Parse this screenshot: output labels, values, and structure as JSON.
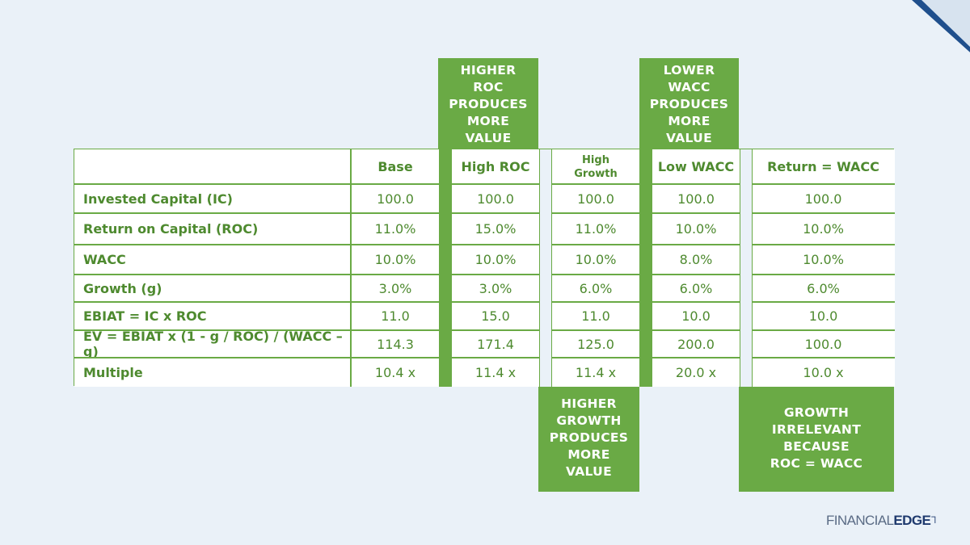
{
  "colors": {
    "background": "#eaf1f8",
    "accent_green": "#6aaa45",
    "text_green": "#4e8a2f",
    "navy": "#1f3a6e"
  },
  "callouts": {
    "higher_roc": [
      "HIGHER",
      "ROC",
      "PRODUCES",
      "MORE",
      "VALUE"
    ],
    "lower_wacc": [
      "LOWER",
      "WACC",
      "PRODUCES",
      "MORE",
      "VALUE"
    ],
    "higher_growth": [
      "HIGHER",
      "GROWTH",
      "PRODUCES",
      "MORE",
      "VALUE"
    ],
    "growth_irrelevant": [
      "GROWTH",
      "IRRELEVANT",
      "BECAUSE",
      "ROC = WACC"
    ]
  },
  "table": {
    "columns": [
      "Base",
      "High ROC",
      "High Growth",
      "Low WACC",
      "Return = WACC"
    ],
    "rows": [
      {
        "label": "Invested Capital (IC)",
        "values": [
          "100.0",
          "100.0",
          "100.0",
          "100.0",
          "100.0"
        ]
      },
      {
        "label": "Return on Capital (ROC)",
        "values": [
          "11.0%",
          "15.0%",
          "11.0%",
          "10.0%",
          "10.0%"
        ]
      },
      {
        "label": "WACC",
        "values": [
          "10.0%",
          "10.0%",
          "10.0%",
          "8.0%",
          "10.0%"
        ]
      },
      {
        "label": "Growth (g)",
        "values": [
          "3.0%",
          "3.0%",
          "6.0%",
          "6.0%",
          "6.0%"
        ]
      },
      {
        "label": "EBIAT = IC x ROC",
        "values": [
          "11.0",
          "15.0",
          "11.0",
          "10.0",
          "10.0"
        ]
      },
      {
        "label": "EV = EBIAT x (1 - g / ROC) / (WACC – g)",
        "values": [
          "114.3",
          "171.4",
          "125.0",
          "200.0",
          "100.0"
        ]
      },
      {
        "label": "Multiple",
        "values": [
          "10.4 x",
          "11.4 x",
          "11.4 x",
          "20.0 x",
          "10.0 x"
        ]
      }
    ]
  },
  "logo": {
    "word1": "FINANCIAL",
    "word2": "EDGE",
    "mark": "┐"
  }
}
